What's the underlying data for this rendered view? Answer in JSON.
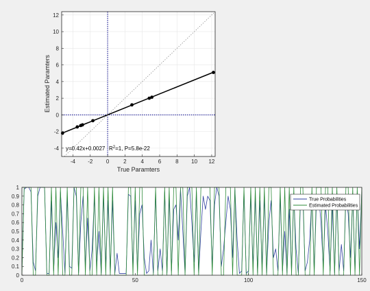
{
  "chart_data": [
    {
      "type": "scatter",
      "title": "",
      "xlabel": "True Paramters",
      "ylabel": "Estimated Paramters",
      "xlim": [
        -5.3,
        12.4
      ],
      "ylim": [
        -5,
        12.4
      ],
      "xticks": [
        -4,
        -2,
        0,
        2,
        4,
        6,
        8,
        10,
        12
      ],
      "yticks": [
        -4,
        -2,
        0,
        2,
        4,
        6,
        8,
        10,
        12
      ],
      "grid": true,
      "points": [
        {
          "x": -5.2,
          "y": -2.2
        },
        {
          "x": -3.5,
          "y": -1.45
        },
        {
          "x": -3.1,
          "y": -1.28
        },
        {
          "x": -2.9,
          "y": -1.2
        },
        {
          "x": -1.7,
          "y": -0.7
        },
        {
          "x": 2.8,
          "y": 1.2
        },
        {
          "x": 4.8,
          "y": 2.0
        },
        {
          "x": 5.1,
          "y": 2.12
        },
        {
          "x": 12.2,
          "y": 5.1
        }
      ],
      "fit_line": {
        "slope": 0.42,
        "intercept": 0.0027,
        "x_range": [
          -5.2,
          12.2
        ],
        "color": "#000000"
      },
      "identity_line": {
        "style": "dotted",
        "color": "#808080"
      },
      "crosshair": {
        "x": 0,
        "y": 0,
        "style": "dotted",
        "color": "#00008b"
      },
      "annotations": {
        "equation": "y=0.42x+0.0027",
        "r2_prefix": "R",
        "r2_sup": "2",
        "r2_rest": "=1, P=5.8e-22"
      }
    },
    {
      "type": "line",
      "title": "",
      "xlabel": "",
      "ylabel": "",
      "xlim": [
        0,
        150
      ],
      "ylim": [
        0,
        1
      ],
      "xticks": [
        0,
        50,
        100,
        150
      ],
      "yticks": [
        0,
        0.1,
        0.2,
        0.3,
        0.4,
        0.5,
        0.6,
        0.7,
        0.8,
        0.9,
        1
      ],
      "ytick_labels": [
        "0",
        "0.1",
        "0.2",
        "0.3",
        "0.4",
        "0.5",
        "0.6",
        "0.7",
        "0.8",
        "0.9",
        "1"
      ],
      "grid": false,
      "legend": "top-right",
      "series": [
        {
          "name": "True Probabilities",
          "color": "#2f3fa0",
          "values": [
            0.1,
            0.98,
            1,
            1,
            0.95,
            0.15,
            0.05,
            0.9,
            1,
            1,
            1,
            0.02,
            0.02,
            0.85,
            0.05,
            0.6,
            0.2,
            0.95,
            0.5,
            0.02,
            0.9,
            0.1,
            0.08,
            1,
            0.9,
            0.02,
            0.6,
            0.9,
            0.1,
            0.65,
            0.05,
            0.3,
            0.9,
            0.1,
            0.5,
            0.02,
            0.92,
            0.1,
            0.85,
            0.03,
            0.85,
            0.02,
            0.25,
            0.02,
            0.02,
            0.02,
            0.02,
            0.92,
            0.9,
            0.1,
            0.85,
            0.05,
            0.7,
            0.8,
            0.2,
            0.02,
            0.05,
            0.4,
            0.02,
            0.95,
            0.05,
            0.3,
            0.05,
            0.95,
            0.02,
            0.9,
            0.05,
            0.75,
            0.8,
            0.4,
            0.98,
            0.5,
            0.02,
            0.9,
            1,
            0.6,
            0.15,
            0.95,
            0.02,
            0.5,
            0.9,
            0.75,
            0.9,
            0.85,
            0.1,
            0.8,
            1,
            0.9,
            0.1,
            0.3,
            0.6,
            0.9,
            0.75,
            0.2,
            0.98,
            0.4,
            0.02,
            0.05,
            0.95,
            0.02,
            0.05,
            0.9,
            0.1,
            0.9,
            0.02,
            0.85,
            0.1,
            0.9,
            0.02,
            0.6,
            0.85,
            0.2,
            0.3,
            0.05,
            0.9,
            0.05,
            0.5,
            0.02,
            0.75,
            0.05,
            0.9,
            0.3,
            0.02,
            0.9,
            0.9,
            0.05,
            0.15,
            0.4,
            0.9,
            0.05,
            0.85,
            0.9,
            0.6,
            0.1,
            0.8,
            0.5,
            0.05,
            0.8,
            0.02,
            0.9,
            0.05,
            0.35,
            0.05,
            0.9,
            0.7,
            0.2,
            0.9,
            0.05,
            0.95,
            0.3,
            0.95
          ]
        },
        {
          "name": "Estimated Probabilities",
          "color": "#2e8b3a",
          "values": [
            0,
            1,
            1,
            1,
            1,
            0,
            0,
            1,
            1,
            1,
            1,
            0,
            0,
            1,
            0,
            1,
            0,
            1,
            0,
            0,
            1,
            0,
            0,
            1,
            1,
            0,
            1,
            1,
            0,
            1,
            0,
            0,
            1,
            0,
            1,
            0,
            1,
            0,
            1,
            0,
            1,
            0,
            0,
            0,
            0,
            0,
            0,
            1,
            1,
            0,
            1,
            0,
            1,
            1,
            0,
            0,
            0,
            0,
            0,
            1,
            0,
            0,
            0,
            1,
            0,
            1,
            0,
            1,
            1,
            0,
            1,
            1,
            0,
            1,
            1,
            1,
            0,
            1,
            0,
            1,
            1,
            1,
            1,
            1,
            0,
            1,
            1,
            1,
            0,
            0,
            1,
            1,
            1,
            0,
            1,
            0,
            0,
            0,
            1,
            0,
            0,
            1,
            0,
            1,
            0,
            1,
            0,
            1,
            0,
            1,
            1,
            0,
            0,
            0,
            1,
            0,
            1,
            0,
            1,
            0,
            1,
            0,
            0,
            1,
            1,
            0,
            0,
            0,
            1,
            0,
            1,
            1,
            1,
            0,
            1,
            1,
            0,
            1,
            0,
            1,
            0,
            0,
            0,
            1,
            1,
            0,
            1,
            0,
            1,
            0,
            1
          ]
        }
      ]
    }
  ]
}
